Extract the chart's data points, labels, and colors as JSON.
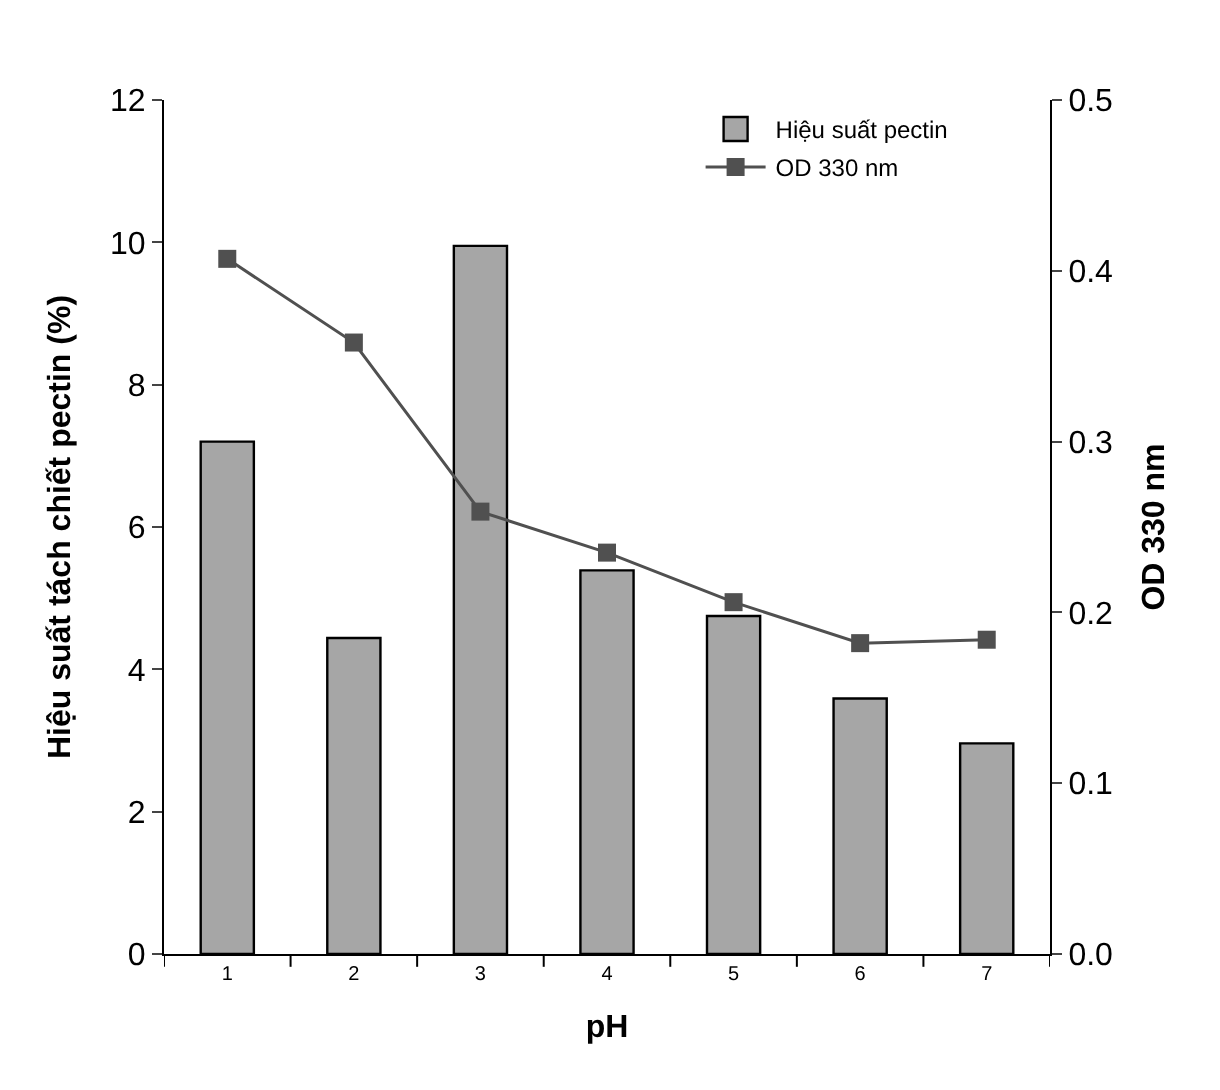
{
  "chart_data": {
    "type": "bar",
    "xlabel": "pH",
    "ylabel": "Hiệu suất tách chiết pectin (%)",
    "y2label": "OD 330 nm",
    "categories": [
      "1",
      "2",
      "3",
      "4",
      "5",
      "6",
      "7"
    ],
    "series": [
      {
        "name": "Hiệu suất pectin",
        "color": "#a6a6a6",
        "values": [
          7.2,
          4.44,
          9.95,
          5.39,
          4.75,
          3.59,
          2.96
        ]
      },
      {
        "name": "OD 330 nm",
        "type": "line",
        "axis": "y2",
        "color": "#505050",
        "marker": "square",
        "values": [
          0.407,
          0.358,
          0.259,
          0.235,
          0.206,
          0.182,
          0.184
        ]
      }
    ],
    "ylim": [
      0,
      12
    ],
    "yticks": [
      0,
      2,
      4,
      6,
      8,
      10,
      12
    ],
    "y2lim": [
      0,
      0.5
    ],
    "y2ticks": [
      {
        "value": 0,
        "label": "0.0"
      },
      0.1,
      0.2,
      0.3,
      0.4,
      0.5
    ],
    "legend": "top right"
  }
}
